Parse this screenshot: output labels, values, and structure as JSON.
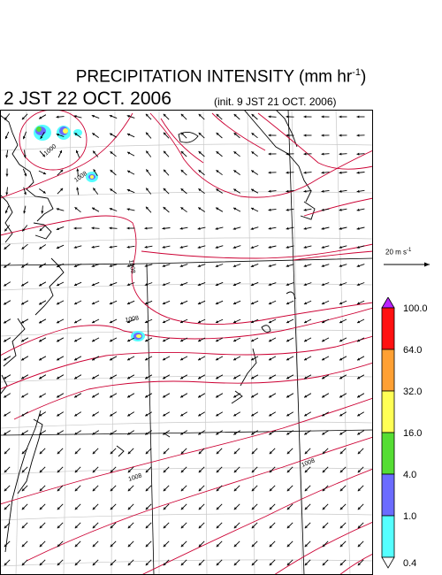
{
  "header": {
    "title": "PRECIPITATION INTENSITY (mm hr",
    "title_exp": "-1",
    "title_close": ")",
    "valid_time": "2 JST 22 OCT. 2006",
    "init_time": "(init. 9 JST 21 OCT. 2006)"
  },
  "wind_reference": {
    "value": "20 m s",
    "exp": "-1"
  },
  "colorbar": {
    "levels": [
      "0.4",
      "1.0",
      "4.0",
      "16.0",
      "32.0",
      "64.0",
      "100.0"
    ],
    "colors": [
      "#55ffff",
      "#6b6bff",
      "#55dd33",
      "#ffff55",
      "#ffa033",
      "#ff1111",
      "#bb22ff"
    ]
  },
  "map": {
    "contour_color": "#cc0033",
    "isobar_labels": [
      "1000",
      "1008",
      "1008",
      "1008",
      "1008",
      "1008"
    ]
  }
}
